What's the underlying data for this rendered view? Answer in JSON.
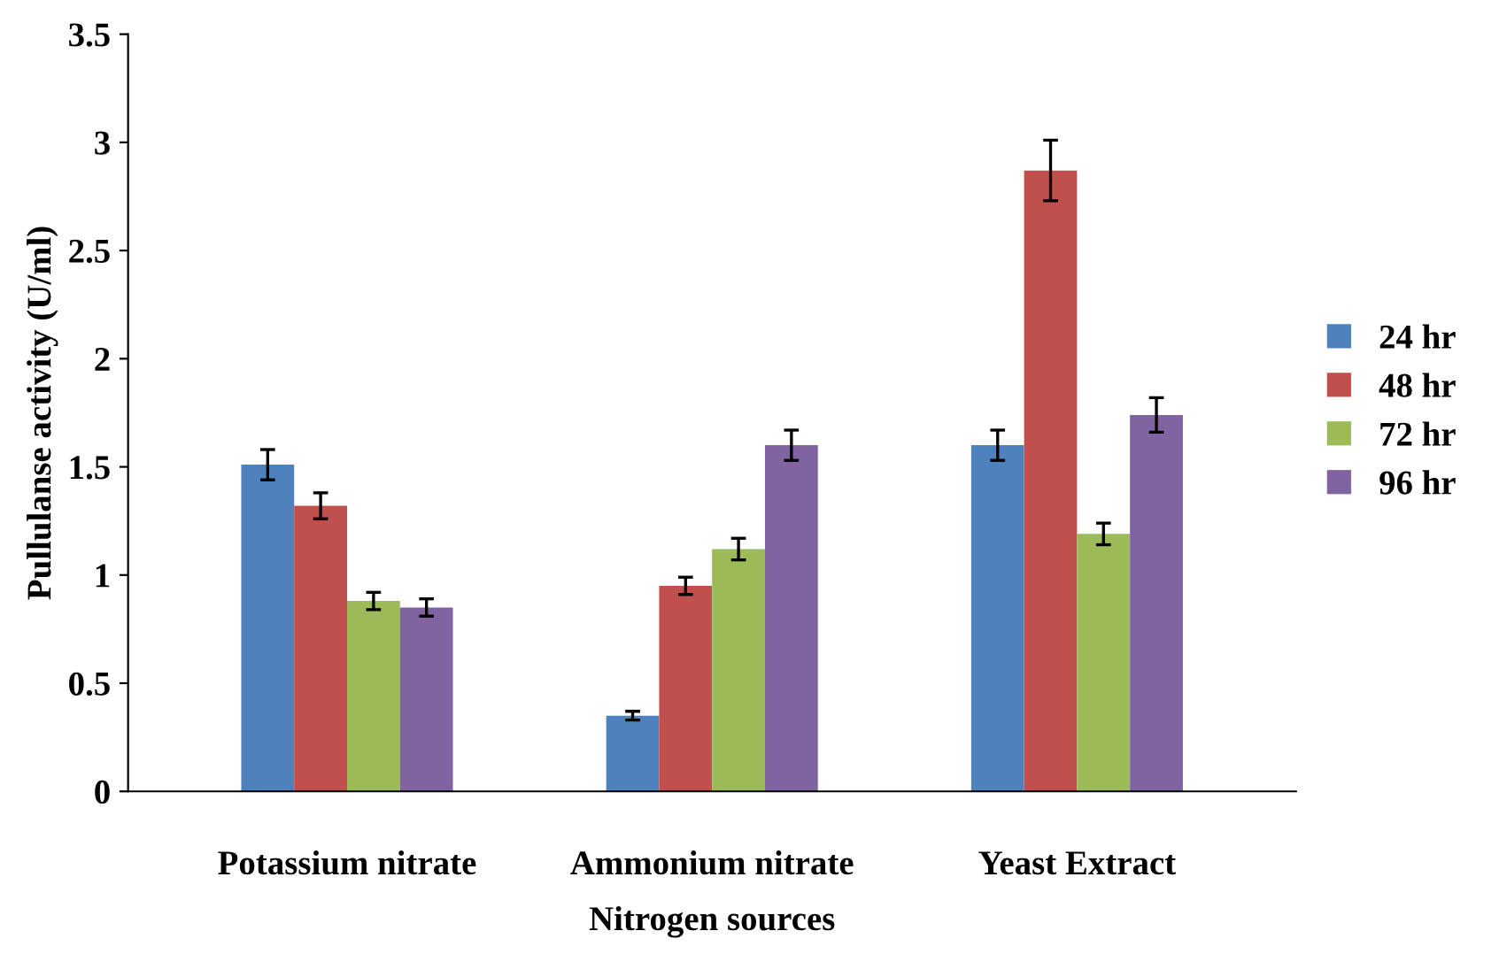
{
  "chart_data": {
    "type": "bar",
    "xlabel": "Nitrogen sources",
    "ylabel": "Pullulanse activity (U/ml)",
    "categories": [
      "Potassium nitrate",
      "Ammonium nitrate",
      "Yeast Extract"
    ],
    "series": [
      {
        "name": "24 hr",
        "color": "#4f81bd",
        "values": [
          1.51,
          0.35,
          1.6
        ],
        "errors": [
          0.07,
          0.02,
          0.07
        ]
      },
      {
        "name": "48 hr",
        "color": "#c0504d",
        "values": [
          1.32,
          0.95,
          2.87
        ],
        "errors": [
          0.06,
          0.04,
          0.14
        ]
      },
      {
        "name": "72 hr",
        "color": "#9bbb59",
        "values": [
          0.88,
          1.12,
          1.19
        ],
        "errors": [
          0.04,
          0.05,
          0.05
        ]
      },
      {
        "name": "96 hr",
        "color": "#8064a2",
        "values": [
          0.85,
          1.6,
          1.74
        ],
        "errors": [
          0.04,
          0.07,
          0.08
        ]
      }
    ],
    "ylim": [
      0,
      3.5
    ],
    "yticks": [
      0,
      0.5,
      1,
      1.5,
      2,
      2.5,
      3,
      3.5
    ],
    "grid": false,
    "legend": "right"
  }
}
